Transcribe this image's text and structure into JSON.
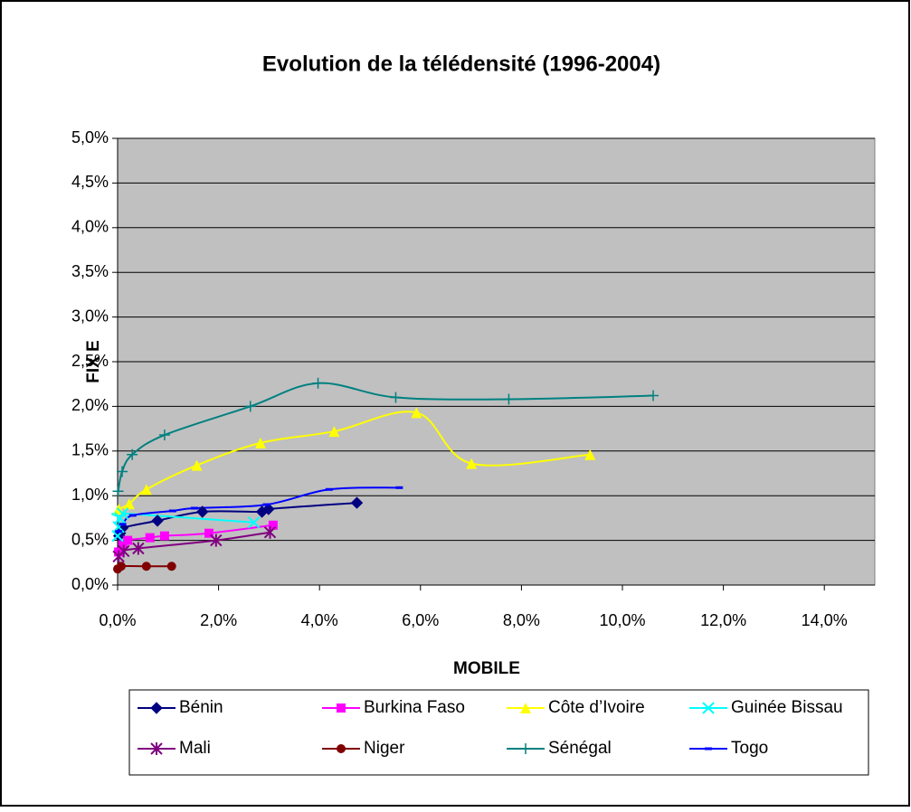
{
  "chart_data": {
    "type": "scatter",
    "title": "Evolution de la télédensité (1996-2004)",
    "xlabel": "MOBILE",
    "ylabel": "FIX E",
    "xlim": [
      0,
      15
    ],
    "xticks": [
      {
        "value": 0,
        "label": "0,0%"
      },
      {
        "value": 2,
        "label": "2,0%"
      },
      {
        "value": 4,
        "label": "4,0%"
      },
      {
        "value": 6,
        "label": "6,0%"
      },
      {
        "value": 8,
        "label": "8,0%"
      },
      {
        "value": 10,
        "label": "10,0%"
      },
      {
        "value": 12,
        "label": "12,0%"
      },
      {
        "value": 14,
        "label": "14,0%"
      }
    ],
    "ylim": [
      0,
      5
    ],
    "yticks": [
      {
        "value": 0,
        "label": "0,0%"
      },
      {
        "value": 0.5,
        "label": "0,5%"
      },
      {
        "value": 1,
        "label": "1,0%"
      },
      {
        "value": 1.5,
        "label": "1,5%"
      },
      {
        "value": 2,
        "label": "2,0%"
      },
      {
        "value": 2.5,
        "label": "2,5%"
      },
      {
        "value": 3,
        "label": "3,0%"
      },
      {
        "value": 3.5,
        "label": "3,5%"
      },
      {
        "value": 4,
        "label": "4,0%"
      },
      {
        "value": 4.5,
        "label": "4,5%"
      },
      {
        "value": 5,
        "label": "5,0%"
      }
    ],
    "grid": true,
    "legend": "bottom",
    "series": [
      {
        "name": "Bénin",
        "color": "#000080",
        "marker": "diamond",
        "x": [
          0.03,
          0.05,
          0.1,
          0.79,
          1.68,
          2.86,
          2.99,
          4.74
        ],
        "values": [
          0.55,
          0.58,
          0.64,
          0.72,
          0.82,
          0.82,
          0.85,
          0.92
        ]
      },
      {
        "name": "Burkina Faso",
        "color": "#ff00ff",
        "marker": "square",
        "x": [
          0.02,
          0.1,
          0.2,
          0.64,
          0.93,
          1.81,
          3.08
        ],
        "values": [
          0.37,
          0.45,
          0.5,
          0.53,
          0.55,
          0.58,
          0.67
        ]
      },
      {
        "name": "Côte d’Ivoire",
        "color": "#ffff00",
        "marker": "triangle",
        "x": [
          0.02,
          0.23,
          0.57,
          1.57,
          2.83,
          4.29,
          5.92,
          7.01,
          9.36
        ],
        "values": [
          0.85,
          0.91,
          1.07,
          1.34,
          1.59,
          1.72,
          1.93,
          1.36,
          1.46
        ]
      },
      {
        "name": "Guinée Bissau",
        "color": "#00ffff",
        "marker": "x",
        "x": [
          0.0,
          0.02,
          0.05,
          0.1,
          2.7
        ],
        "values": [
          0.55,
          0.65,
          0.75,
          0.8,
          0.7
        ]
      },
      {
        "name": "Mali",
        "color": "#800080",
        "marker": "star",
        "x": [
          0.02,
          0.12,
          0.41,
          1.95,
          3.02
        ],
        "values": [
          0.32,
          0.38,
          0.41,
          0.5,
          0.59
        ]
      },
      {
        "name": "Niger",
        "color": "#800000",
        "marker": "circle",
        "x": [
          0.0,
          0.07,
          0.57,
          1.07
        ],
        "values": [
          0.18,
          0.21,
          0.21,
          0.21
        ]
      },
      {
        "name": "Sénégal",
        "color": "#008080",
        "marker": "plus",
        "x": [
          0.01,
          0.09,
          0.29,
          0.93,
          2.63,
          3.97,
          5.51,
          7.75,
          10.61
        ],
        "values": [
          1.05,
          1.27,
          1.46,
          1.68,
          2.0,
          2.26,
          2.1,
          2.08,
          2.12
        ]
      },
      {
        "name": "Togo",
        "color": "#0000ff",
        "marker": "dash",
        "x": [
          0.02,
          0.1,
          0.3,
          1.09,
          1.52,
          2.95,
          4.19,
          5.58
        ],
        "values": [
          0.6,
          0.68,
          0.78,
          0.83,
          0.86,
          0.9,
          1.07,
          1.09
        ]
      }
    ]
  }
}
